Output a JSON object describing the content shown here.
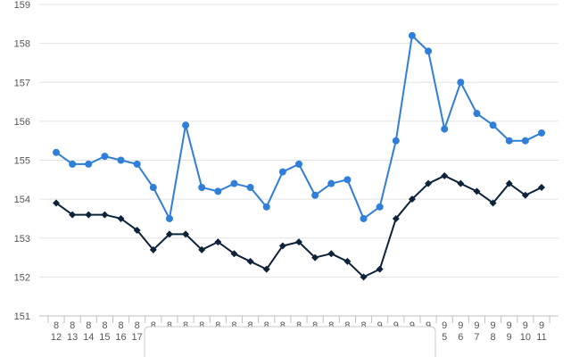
{
  "chart_data": {
    "type": "line",
    "x": [
      [
        "8",
        "12"
      ],
      [
        "8",
        "13"
      ],
      [
        "8",
        "14"
      ],
      [
        "8",
        "15"
      ],
      [
        "8",
        "16"
      ],
      [
        "8",
        "17"
      ],
      [
        "8",
        "18"
      ],
      [
        "8",
        "19"
      ],
      [
        "8",
        "20"
      ],
      [
        "8",
        "21"
      ],
      [
        "8",
        "22"
      ],
      [
        "8",
        "23"
      ],
      [
        "8",
        "24"
      ],
      [
        "8",
        "25"
      ],
      [
        "8",
        "26"
      ],
      [
        "8",
        "27"
      ],
      [
        "8",
        "28"
      ],
      [
        "8",
        "29"
      ],
      [
        "8",
        "30"
      ],
      [
        "8",
        "31"
      ],
      [
        "9",
        "1"
      ],
      [
        "9",
        "2"
      ],
      [
        "9",
        "3"
      ],
      [
        "9",
        "4"
      ],
      [
        "9",
        "5"
      ],
      [
        "9",
        "6"
      ],
      [
        "9",
        "7"
      ],
      [
        "9",
        "8"
      ],
      [
        "9",
        "9"
      ],
      [
        "9",
        "10"
      ],
      [
        "9",
        "11"
      ]
    ],
    "ylim": [
      151,
      159
    ],
    "yticks": [
      151,
      152,
      153,
      154,
      155,
      156,
      157,
      158,
      159
    ],
    "grid": true,
    "series": [
      {
        "color": "#2f7ed8",
        "marker": "circle",
        "values": [
          155.2,
          154.9,
          154.9,
          155.1,
          155.0,
          154.9,
          154.3,
          153.5,
          155.9,
          154.3,
          154.2,
          154.4,
          154.3,
          153.8,
          154.7,
          154.9,
          154.1,
          154.4,
          154.5,
          153.5,
          153.8,
          155.5,
          158.2,
          157.8,
          155.8,
          157.0,
          156.2,
          155.9,
          155.5,
          155.5,
          155.7
        ]
      },
      {
        "color": "#0d233a",
        "marker": "diamond",
        "values": [
          153.9,
          153.6,
          153.6,
          153.6,
          153.5,
          153.2,
          152.7,
          153.1,
          153.1,
          152.7,
          152.9,
          152.6,
          152.4,
          152.2,
          152.8,
          152.9,
          152.5,
          152.6,
          152.4,
          152.0,
          152.2,
          153.5,
          154.0,
          154.4,
          154.6,
          154.4,
          154.2,
          153.9,
          154.4,
          154.1,
          154.3
        ]
      }
    ]
  }
}
